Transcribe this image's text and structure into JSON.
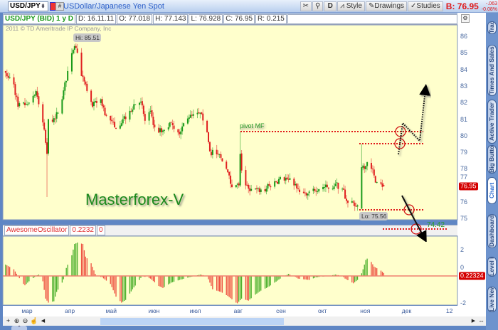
{
  "toolbar": {
    "symbol": "USD/JPY",
    "symbol_description": "USDollar/Japanese Yen Spot",
    "aggregation": "D",
    "style_label": "Style",
    "drawings_label": "Drawings",
    "studies_label": "Studies",
    "bid": "B: 76.95",
    "change": "-.063",
    "change_pct": "-0.08%"
  },
  "infobar": {
    "title": "USD/JPY (BID) 1 y D",
    "date": "D: 16.11.11",
    "open": "O: 77.018",
    "high": "H: 77.143",
    "low": "L: 76.928",
    "close": "C: 76.95",
    "range": "R: 0.215"
  },
  "copyright": "2011 © TD Ameritrade IP Company, Inc",
  "watermark": "Masterforex-V",
  "annotations": {
    "hi": "Hi: 85.51",
    "lo": "Lo: 75.56",
    "pivot": "pivot MF",
    "target": "74.42"
  },
  "price_tag": "76.95",
  "osc_tag": "0.22324",
  "oscillator": {
    "name": "AwesomeOscillator",
    "value": "0.2232",
    "zero": "0"
  },
  "sidebar_tabs": [
    "Trade",
    "Times And Sales",
    "Active Trader",
    "Big Buttons",
    "Chart",
    "Dashboard",
    "Level II",
    "Live News"
  ],
  "active_tab": "Chart",
  "colors": {
    "up": "#1a9a1a",
    "down": "#e02020",
    "background": "#ffffcc",
    "pivot": "#e01818",
    "accent": "#2a5ec8"
  },
  "chart_data": [
    {
      "type": "candlestick",
      "title": "USD/JPY (BID) 1 y D",
      "yticks": [
        75,
        76,
        77,
        78,
        79,
        80,
        81,
        82,
        83,
        84,
        85,
        86
      ],
      "ylim": [
        75,
        86
      ],
      "xticks": [
        "мар",
        "апр",
        "май",
        "июн",
        "июл",
        "авг",
        "сен",
        "окт",
        "ноя",
        "дек",
        "12"
      ],
      "xlim": [
        "2011-02-15",
        "2011-12-31"
      ],
      "close_keypoints": [
        [
          "2011-02-15",
          83.8
        ],
        [
          "2011-02-21",
          83.1
        ],
        [
          "2011-02-24",
          81.75
        ],
        [
          "2011-03-02",
          81.9
        ],
        [
          "2011-03-09",
          82.7
        ],
        [
          "2011-03-11",
          81.9
        ],
        [
          "2011-03-14",
          80.8
        ],
        [
          "2011-03-17",
          78.9
        ],
        [
          "2011-03-18",
          81.0
        ],
        [
          "2011-03-23",
          81.0
        ],
        [
          "2011-03-28",
          82.2
        ],
        [
          "2011-04-01",
          83.9
        ],
        [
          "2011-04-06",
          85.4
        ],
        [
          "2011-04-08",
          85.0
        ],
        [
          "2011-04-11",
          83.6
        ],
        [
          "2011-04-15",
          82.7
        ],
        [
          "2011-04-19",
          81.75
        ],
        [
          "2011-04-25",
          82.2
        ],
        [
          "2011-04-29",
          81.2
        ],
        [
          "2011-05-05",
          80.5
        ],
        [
          "2011-05-11",
          81.0
        ],
        [
          "2011-05-16",
          81.5
        ],
        [
          "2011-05-19",
          81.9
        ],
        [
          "2011-05-24",
          82.05
        ],
        [
          "2011-05-27",
          80.9
        ],
        [
          "2011-05-31",
          81.5
        ],
        [
          "2011-06-03",
          80.5
        ],
        [
          "2011-06-08",
          80.2
        ],
        [
          "2011-06-15",
          80.8
        ],
        [
          "2011-06-20",
          80.2
        ],
        [
          "2011-06-28",
          81.1
        ],
        [
          "2011-07-07",
          81.3
        ],
        [
          "2011-07-11",
          80.2
        ],
        [
          "2011-07-13",
          79.05
        ],
        [
          "2011-07-19",
          78.9
        ],
        [
          "2011-07-25",
          78.0
        ],
        [
          "2011-07-29",
          76.9
        ],
        [
          "2011-08-03",
          77.0
        ],
        [
          "2011-08-04",
          78.9
        ],
        [
          "2011-08-05",
          77.9
        ],
        [
          "2011-08-08",
          77.0
        ],
        [
          "2011-08-10",
          76.8
        ],
        [
          "2011-08-15",
          76.8
        ],
        [
          "2011-08-18",
          76.6
        ],
        [
          "2011-08-23",
          76.8
        ],
        [
          "2011-08-29",
          77.25
        ],
        [
          "2011-09-06",
          77.45
        ],
        [
          "2011-09-12",
          77.0
        ],
        [
          "2011-09-16",
          76.6
        ],
        [
          "2011-09-21",
          76.4
        ],
        [
          "2011-09-26",
          76.8
        ],
        [
          "2011-10-03",
          76.9
        ],
        [
          "2011-10-07",
          76.8
        ],
        [
          "2011-10-12",
          77.1
        ],
        [
          "2011-10-17",
          76.8
        ],
        [
          "2011-10-21",
          75.95
        ],
        [
          "2011-10-26",
          75.75
        ],
        [
          "2011-10-28",
          75.8
        ],
        [
          "2011-10-31",
          78.1
        ],
        [
          "2011-11-01",
          78.2
        ],
        [
          "2011-11-02",
          78.0
        ],
        [
          "2011-11-04",
          78.4
        ],
        [
          "2011-11-07",
          78.0
        ],
        [
          "2011-11-09",
          77.6
        ],
        [
          "2011-11-11",
          77.2
        ],
        [
          "2011-11-14",
          77.1
        ],
        [
          "2011-11-16",
          76.95
        ]
      ],
      "ohlc_overrides": {
        "2011-03-17": {
          "low": 76.3
        },
        "2011-04-06": {
          "high": 85.51
        },
        "2011-08-04": {
          "open": 77.0,
          "high": 80.25,
          "low": 76.9
        },
        "2011-10-31": {
          "open": 75.6,
          "high": 79.5,
          "low": 75.56
        },
        "2011-11-16": {
          "open": 77.018,
          "high": 77.143,
          "low": 76.928,
          "close": 76.95
        }
      },
      "levels": [
        {
          "label": "pivot MF",
          "price": 80.25,
          "from": "2011-08-04"
        },
        {
          "price": 79.5,
          "from": "2011-10-31"
        },
        {
          "price": 75.56,
          "from": "2011-10-31"
        },
        {
          "label": "74.42",
          "price": 74.42
        }
      ]
    },
    {
      "type": "bar",
      "title": "AwesomeOscillator",
      "yticks": [
        2,
        0,
        -2
      ],
      "ylim": [
        -2.2,
        2.9
      ],
      "keypoints": [
        [
          "2011-02-15",
          0.85
        ],
        [
          "2011-02-21",
          0.5
        ],
        [
          "2011-02-24",
          0
        ],
        [
          "2011-02-27",
          -0.5
        ],
        [
          "2011-03-01",
          -0.7
        ],
        [
          "2011-03-04",
          -0.4
        ],
        [
          "2011-03-09",
          0
        ],
        [
          "2011-03-11",
          0.1
        ],
        [
          "2011-03-14",
          -0.4
        ],
        [
          "2011-03-16",
          -1.7
        ],
        [
          "2011-03-18",
          -2.0
        ],
        [
          "2011-03-22",
          -1.9
        ],
        [
          "2011-03-24",
          -1.2
        ],
        [
          "2011-03-28",
          -0.5
        ],
        [
          "2011-03-30",
          0
        ],
        [
          "2011-03-31",
          0.6
        ],
        [
          "2011-04-04",
          1.55
        ],
        [
          "2011-04-06",
          2.4
        ],
        [
          "2011-04-08",
          2.5
        ],
        [
          "2011-04-12",
          2.4
        ],
        [
          "2011-04-14",
          1.45
        ],
        [
          "2011-04-18",
          0.95
        ],
        [
          "2011-04-21",
          0.15
        ],
        [
          "2011-04-22",
          0
        ],
        [
          "2011-04-26",
          -0.1
        ],
        [
          "2011-05-02",
          -0.6
        ],
        [
          "2011-05-06",
          -1.55
        ],
        [
          "2011-05-10",
          -2.0
        ],
        [
          "2011-05-13",
          -1.8
        ],
        [
          "2011-05-18",
          -1.0
        ],
        [
          "2011-05-23",
          -0.3
        ],
        [
          "2011-05-25",
          0
        ],
        [
          "2011-05-31",
          -0.2
        ],
        [
          "2011-06-06",
          -0.75
        ],
        [
          "2011-06-09",
          -0.9
        ],
        [
          "2011-06-15",
          -0.5
        ],
        [
          "2011-06-21",
          -0.3
        ],
        [
          "2011-06-28",
          -0.1
        ],
        [
          "2011-07-06",
          0.1
        ],
        [
          "2011-07-11",
          0
        ],
        [
          "2011-07-13",
          -0.5
        ],
        [
          "2011-07-15",
          -1.0
        ],
        [
          "2011-07-21",
          -1.2
        ],
        [
          "2011-07-26",
          -1.5
        ],
        [
          "2011-08-01",
          -2.0
        ],
        [
          "2011-08-02",
          -2.05
        ],
        [
          "2011-08-05",
          -1.7
        ],
        [
          "2011-08-10",
          -1.85
        ],
        [
          "2011-08-15",
          -1.4
        ],
        [
          "2011-08-19",
          -1.1
        ],
        [
          "2011-08-24",
          -0.85
        ],
        [
          "2011-08-29",
          -0.5
        ],
        [
          "2011-09-02",
          -0.2
        ],
        [
          "2011-09-08",
          0.15
        ],
        [
          "2011-09-12",
          0
        ],
        [
          "2011-09-15",
          -0.2
        ],
        [
          "2011-09-23",
          -0.3
        ],
        [
          "2011-09-28",
          -0.1
        ],
        [
          "2011-10-07",
          0
        ],
        [
          "2011-10-12",
          0.1
        ],
        [
          "2011-10-17",
          0
        ],
        [
          "2011-10-19",
          -0.2
        ],
        [
          "2011-10-25",
          -0.55
        ],
        [
          "2011-10-28",
          -0.3
        ],
        [
          "2011-10-31",
          0.2
        ],
        [
          "2011-11-01",
          0.5
        ],
        [
          "2011-11-03",
          1.2
        ],
        [
          "2011-11-04",
          1.3
        ],
        [
          "2011-11-07",
          1.05
        ],
        [
          "2011-11-09",
          0.7
        ],
        [
          "2011-11-14",
          0.4
        ],
        [
          "2011-11-16",
          0.2232
        ]
      ]
    }
  ]
}
